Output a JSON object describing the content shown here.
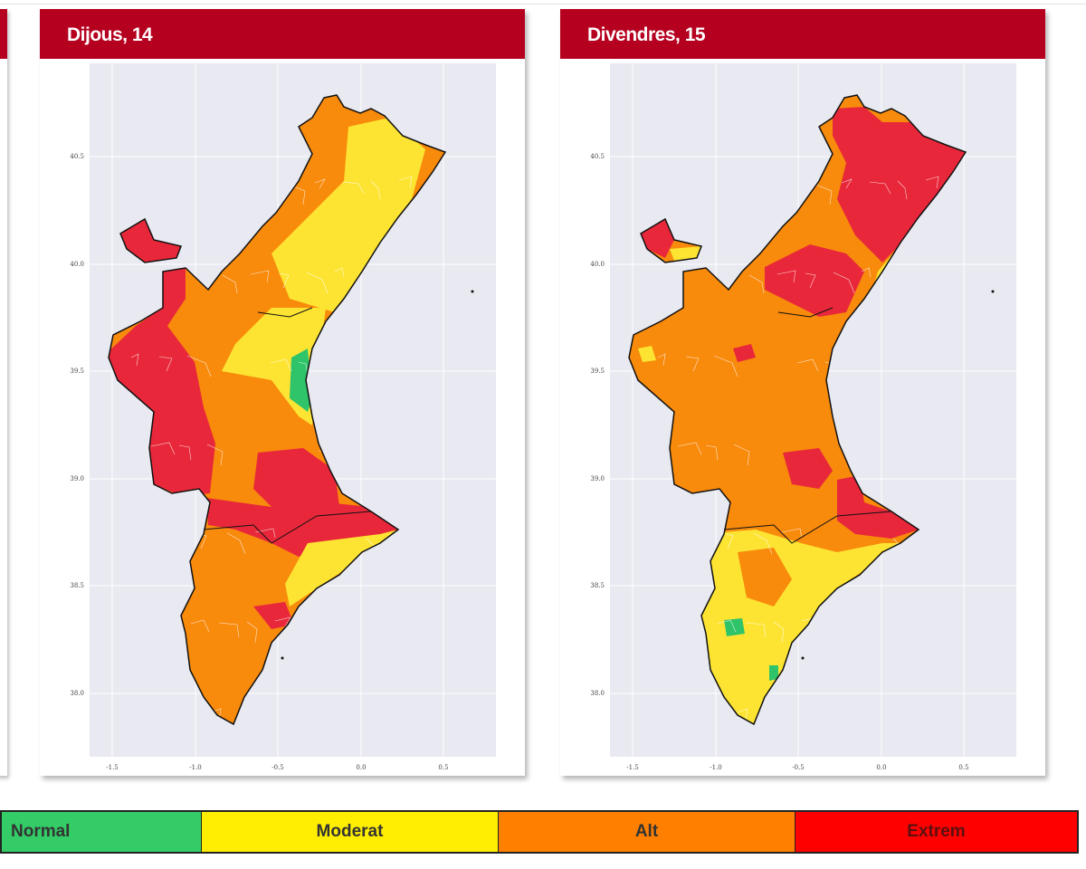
{
  "panels": [
    {
      "title": "Dijous, 14"
    },
    {
      "title": "Divendres, 15"
    }
  ],
  "axes": {
    "x_ticks": [
      "-1.5",
      "-1.0",
      "-0.5",
      "0.0",
      "0.5"
    ],
    "y_ticks": [
      "40.5",
      "40.0",
      "39.5",
      "39.0",
      "38.5",
      "38.0"
    ]
  },
  "legend": [
    {
      "label": "Normal",
      "color": "#33cc66"
    },
    {
      "label": "Moderat",
      "color": "#ffee00"
    },
    {
      "label": "Alt",
      "color": "#ff8000"
    },
    {
      "label": "Extrem",
      "color": "#ff0000"
    }
  ],
  "map_colors": {
    "normal": "#2fc46a",
    "moderat": "#fde433",
    "alt": "#f88a0c",
    "extrem": "#e8283a",
    "plot_bg": "#e8e9f1"
  }
}
